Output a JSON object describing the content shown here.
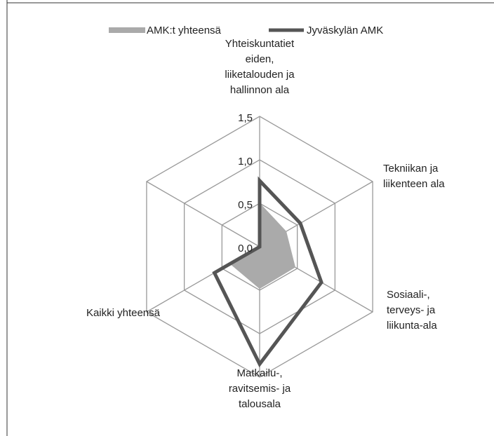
{
  "chart_data": {
    "type": "radar",
    "categories": [
      "Yhteiskuntatiet\neiden,\nliiketalouden ja\nhallinnon ala",
      "Tekniikan ja\nliikenteen ala",
      "Sosiaali-,\nterveys- ja\nliikunta-ala",
      "Matkailu-,\nravitsemis- ja\ntalousala",
      "Kaikki yhteensä",
      null
    ],
    "series": [
      {
        "name": "AMK:t yhteensä",
        "color": "#aaaaaa",
        "fill": true,
        "values": [
          0.5,
          0.35,
          0.47,
          0.48,
          0.39,
          0
        ]
      },
      {
        "name": "Jyväskylän AMK",
        "color": "#555555",
        "fill": false,
        "values": [
          0.76,
          0.54,
          0.82,
          1.35,
          0.6,
          0
        ]
      }
    ],
    "ylim": [
      0,
      1.5
    ],
    "yticks": [
      {
        "value": 0,
        "label": "0,0"
      },
      {
        "value": 0.5,
        "label": "0,5"
      },
      {
        "value": 1,
        "label": "1,0"
      },
      {
        "value": 1.5,
        "label": "1,5"
      }
    ],
    "grid": true,
    "legend": "top"
  }
}
